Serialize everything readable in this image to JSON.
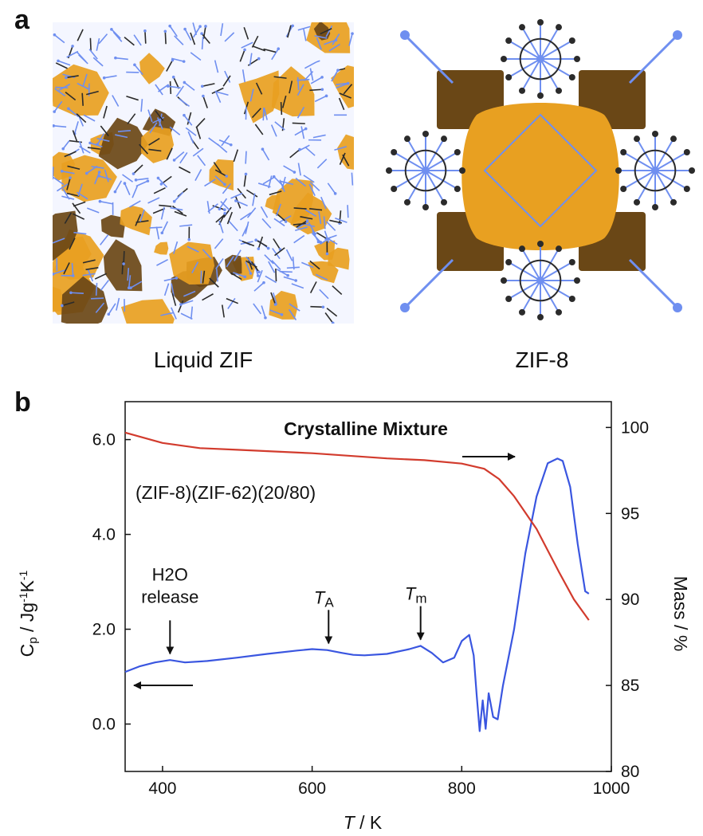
{
  "panel_a": {
    "letter": "a",
    "left_caption": "Liquid ZIF",
    "right_caption": "ZIF-8"
  },
  "panel_b": {
    "letter": "b"
  },
  "colors": {
    "cp_line": "#3a56e0",
    "mass_line": "#d23b2d",
    "pore": "#e8a021",
    "pore_dark": "#6a4716",
    "bond_blue": "#6f8ff0",
    "atom_dark": "#2b2b2b"
  },
  "chart_data": {
    "type": "line",
    "title": "Crystalline Mixture",
    "sample_label": "(ZIF-8)(ZIF-62)(20/80)",
    "xlabel_italic": "T",
    "xlabel_rest": " / K",
    "ylabel_left": "Cp / Jg-1K-1",
    "ylabel_right": "Mass / %",
    "xlim": [
      350,
      1000
    ],
    "ylim_left": [
      -1.0,
      6.8
    ],
    "ylim_right": [
      80,
      101.5
    ],
    "x_ticks": [
      "400",
      "600",
      "800",
      "1000"
    ],
    "y_left_ticks": [
      "0.0",
      "2.0",
      "4.0",
      "6.0"
    ],
    "y_right_ticks": [
      "80",
      "85",
      "90",
      "95",
      "100"
    ],
    "series": [
      {
        "axis": "left",
        "x": [
          350,
          370,
          390,
          410,
          430,
          460,
          500,
          540,
          580,
          600,
          620,
          640,
          655,
          670,
          700,
          730,
          745,
          760,
          775,
          790,
          800,
          810,
          816,
          820,
          824,
          828,
          832,
          836,
          842,
          848,
          855,
          870,
          885,
          900,
          915,
          928,
          935,
          945,
          955,
          965,
          970
        ],
        "y": [
          1.1,
          1.22,
          1.3,
          1.35,
          1.3,
          1.33,
          1.4,
          1.48,
          1.55,
          1.58,
          1.56,
          1.5,
          1.46,
          1.45,
          1.48,
          1.58,
          1.65,
          1.5,
          1.3,
          1.4,
          1.75,
          1.88,
          1.45,
          0.6,
          -0.15,
          0.5,
          -0.1,
          0.65,
          0.15,
          0.1,
          0.8,
          2.0,
          3.6,
          4.8,
          5.5,
          5.6,
          5.55,
          5.0,
          3.8,
          2.8,
          2.75
        ]
      },
      {
        "axis": "right",
        "x": [
          350,
          400,
          450,
          500,
          600,
          700,
          750,
          800,
          830,
          850,
          870,
          900,
          930,
          950,
          970
        ],
        "y": [
          99.7,
          99.1,
          98.8,
          98.7,
          98.5,
          98.2,
          98.1,
          97.9,
          97.6,
          97.0,
          96.0,
          94.1,
          91.6,
          90.0,
          88.8
        ]
      }
    ],
    "annotations": [
      {
        "kind": "down-arrow",
        "x": 410,
        "y": 1.38,
        "lines": [
          "H2O",
          "release"
        ]
      },
      {
        "kind": "down-arrow",
        "x": 622,
        "y": 1.6,
        "italic": "T",
        "sub": "A"
      },
      {
        "kind": "down-arrow",
        "x": 745,
        "y": 1.68,
        "italic": "T",
        "sub": "m"
      }
    ]
  }
}
